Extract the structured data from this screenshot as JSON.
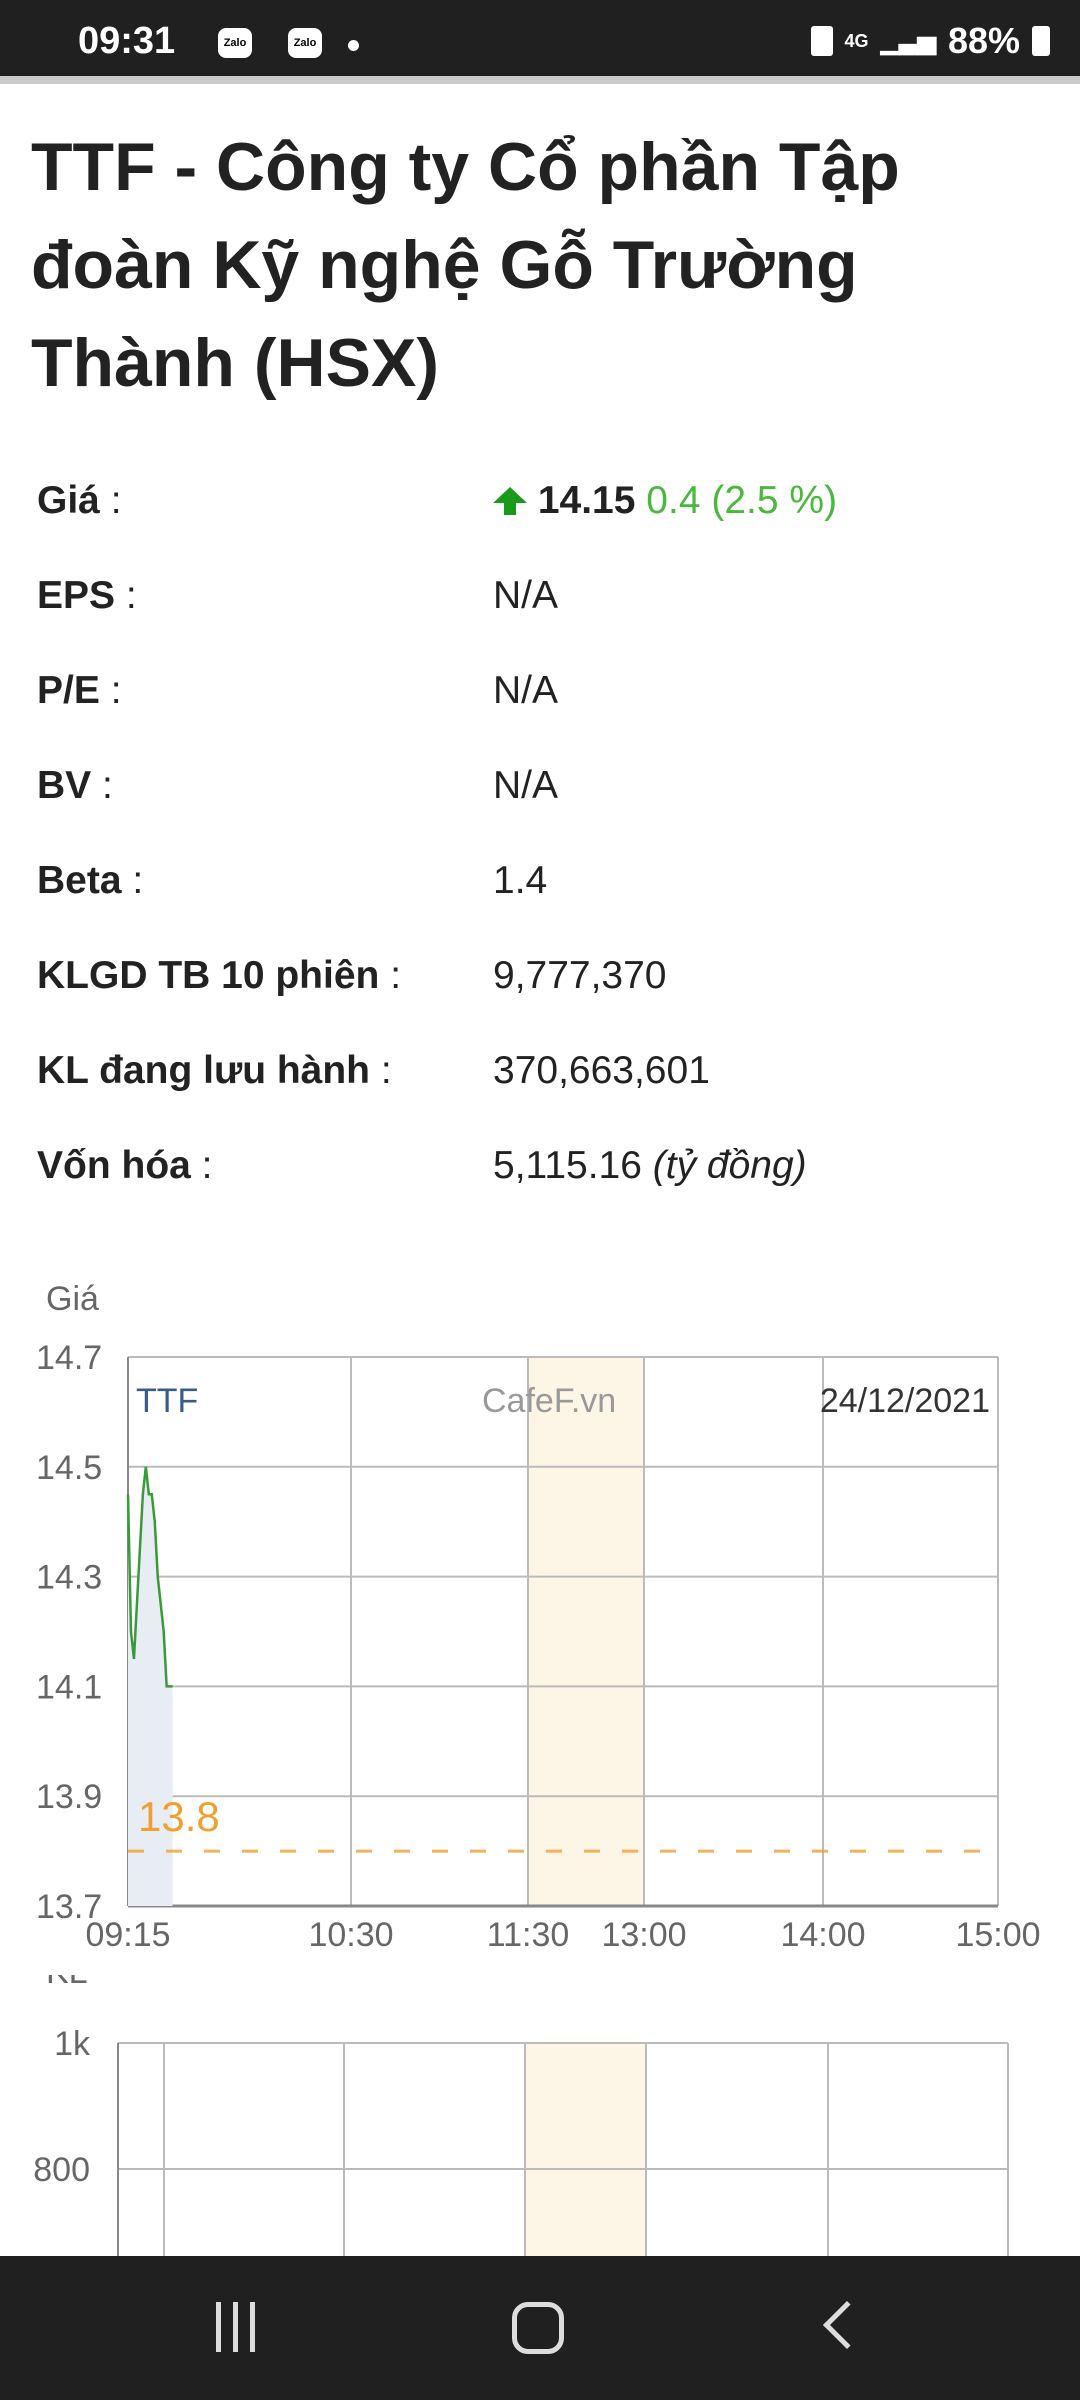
{
  "status": {
    "time": "09:31",
    "apps": [
      "Zalo",
      "Zalo"
    ],
    "network": "4G",
    "battery": "88%"
  },
  "title": "TTF - Công ty Cổ phần Tập đoàn Kỹ nghệ Gỗ Trường Thành (HSX)",
  "info": [
    {
      "label": "Giá",
      "value": "14.15",
      "change": "0.4 (2.5 %)",
      "direction": "up"
    },
    {
      "label": "EPS",
      "value": "N/A"
    },
    {
      "label": "P/E",
      "value": "N/A"
    },
    {
      "label": "BV",
      "value": "N/A"
    },
    {
      "label": "Beta",
      "value": "1.4"
    },
    {
      "label": "KLGD TB 10 phiên",
      "value": "9,777,370"
    },
    {
      "label": "KL đang lưu hành",
      "value": "370,663,601"
    },
    {
      "label": "Vốn hóa",
      "value": "5,115.16",
      "unit": "(tỷ đồng)"
    }
  ],
  "colors": {
    "up": "#4ab83d",
    "line": "#3a9a3a",
    "reference": "#f0a030",
    "lunch": "#fdf6e6"
  },
  "chart_data": [
    {
      "type": "line",
      "ylabel": "Giá",
      "symbol": "TTF",
      "watermark": "CafeF.vn",
      "date": "24/12/2021",
      "yticks": [
        "14.7",
        "14.5",
        "14.3",
        "14.1",
        "13.9",
        "13.7"
      ],
      "ylim": [
        13.7,
        14.7
      ],
      "xticks": [
        "09:15",
        "10:30",
        "11:30",
        "13:00",
        "14:00",
        "15:00"
      ],
      "reference": {
        "value": 13.8,
        "label": "13.8"
      },
      "x": [
        "09:15",
        "09:16",
        "09:17",
        "09:18",
        "09:19",
        "09:20",
        "09:21",
        "09:22",
        "09:23",
        "09:24",
        "09:25",
        "09:26",
        "09:27",
        "09:28",
        "09:29",
        "09:30"
      ],
      "values": [
        14.45,
        14.2,
        14.15,
        14.25,
        14.35,
        14.45,
        14.5,
        14.45,
        14.45,
        14.4,
        14.3,
        14.25,
        14.2,
        14.1,
        14.1,
        14.1
      ],
      "grid": true
    },
    {
      "type": "bar",
      "ylabel": "KL",
      "yticks": [
        "1k",
        "800"
      ],
      "values": []
    }
  ]
}
